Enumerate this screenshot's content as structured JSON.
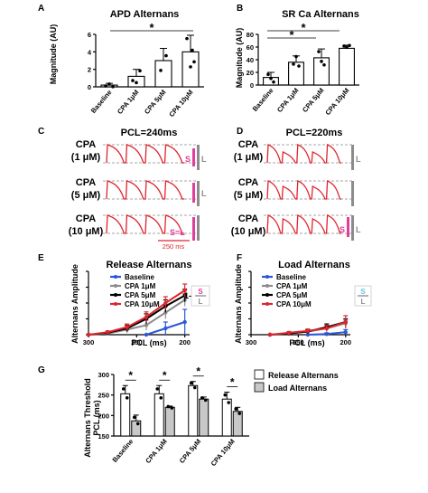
{
  "panels": {
    "A": {
      "letter": "A",
      "title": "APD Alternans",
      "ylabel": "Magnitude (AU)",
      "sig": "*"
    },
    "B": {
      "letter": "B",
      "title": "SR Ca Alternans",
      "ylabel": "Magnitude (AU)",
      "sig1": "*",
      "sig2": "*"
    },
    "C": {
      "letter": "C",
      "title": "PCL=240ms",
      "rows": [
        "CPA",
        "(1 μM)",
        "CPA",
        "(5 μM)",
        "CPA",
        "(10 μM)"
      ],
      "scale": "250 ms",
      "S": "S",
      "L": "L",
      "SL": "S=L"
    },
    "D": {
      "letter": "D",
      "title": "PCL=220ms",
      "rows": [
        "CPA",
        "(1 μM)",
        "CPA",
        "(5 μM)",
        "CPA",
        "(10 μM)"
      ],
      "S": "S",
      "L": "L"
    },
    "E": {
      "letter": "E",
      "title": "Release Alternans",
      "ylabel": "Alternans Amplitude",
      "xlabel": "PCL (ms)",
      "formula_prefix": "1-",
      "formula_num": "S",
      "formula_den": "L"
    },
    "F": {
      "letter": "F",
      "title": "Load Alternans",
      "ylabel": "Alternans Amplitude",
      "xlabel": "PCL (ms)",
      "formula_num": "S",
      "formula_den": "L"
    },
    "G": {
      "letter": "G",
      "ylabel1": "Alternans Threshold",
      "ylabel2": "PCL (ms)",
      "sig": "*"
    }
  },
  "legend_lines": [
    "Baseline",
    "CPA 1μM",
    "CPA 5μM",
    "CPA 10μM"
  ],
  "legend_G": [
    "Release Alternans",
    "Load Alternans"
  ],
  "colors": {
    "red": "#e0242c",
    "blue": "#2b58d6",
    "gray": "#8c8c8c",
    "black": "#000000",
    "pink": "#e23d9a",
    "cyan": "#5cc8e6",
    "bargray": "#c8c8c8"
  },
  "chart_data": [
    {
      "type": "bar",
      "panel": "A",
      "title": "APD Alternans",
      "ylabel": "Magnitude (AU)",
      "categories": [
        "Baseline",
        "CPA 1μM",
        "CPA 5μM",
        "CPA 10μM"
      ],
      "values": [
        0.2,
        1.2,
        3.0,
        4.0
      ],
      "errors": [
        0.2,
        0.8,
        1.4,
        1.9
      ],
      "ylim": [
        0,
        6
      ],
      "yticks": [
        0,
        2,
        4,
        6
      ]
    },
    {
      "type": "bar",
      "panel": "B",
      "title": "SR Ca Alternans",
      "ylabel": "Magnitude (AU)",
      "categories": [
        "Baseline",
        "CPA 1μM",
        "CPA 5μM",
        "CPA 10μM"
      ],
      "values": [
        12,
        36,
        43,
        58
      ],
      "errors": [
        8,
        10,
        14,
        5
      ],
      "ylim": [
        0,
        80
      ],
      "yticks": [
        0,
        20,
        40,
        60,
        80
      ]
    },
    {
      "type": "line",
      "panel": "E",
      "title": "Release Alternans",
      "xlabel": "PCL (ms)",
      "ylabel": "Alternans Amplitude",
      "x": [
        300,
        280,
        260,
        240,
        220,
        200
      ],
      "xlim": [
        300,
        195
      ],
      "xticks": [
        300,
        250,
        200
      ],
      "ylim": [
        0,
        1
      ],
      "series": [
        {
          "name": "Baseline",
          "x": [
            240,
            220,
            200
          ],
          "values": [
            0.0,
            0.1,
            0.2
          ],
          "errors": [
            0.0,
            0.1,
            0.2
          ]
        },
        {
          "name": "CPA 1μM",
          "x": [
            300,
            280,
            260,
            240,
            220,
            200
          ],
          "values": [
            0.0,
            0.02,
            0.08,
            0.15,
            0.35,
            0.55
          ],
          "errors": [
            0.0,
            0.02,
            0.05,
            0.08,
            0.1,
            0.1
          ]
        },
        {
          "name": "CPA 5μM",
          "x": [
            300,
            280,
            260,
            240,
            220,
            200
          ],
          "values": [
            0.0,
            0.03,
            0.1,
            0.25,
            0.45,
            0.62
          ],
          "errors": [
            0.0,
            0.02,
            0.05,
            0.08,
            0.1,
            0.1
          ]
        },
        {
          "name": "CPA 10μM",
          "x": [
            300,
            280,
            260,
            240,
            220,
            200
          ],
          "values": [
            0.0,
            0.04,
            0.12,
            0.28,
            0.5,
            0.7
          ],
          "errors": [
            0.0,
            0.02,
            0.05,
            0.08,
            0.1,
            0.1
          ]
        }
      ]
    },
    {
      "type": "line",
      "panel": "F",
      "title": "Load Alternans",
      "xlabel": "PCL (ms)",
      "ylabel": "Alternans Amplitude",
      "x": [
        280,
        260,
        240,
        220,
        200
      ],
      "xlim": [
        300,
        195
      ],
      "xticks": [
        300,
        250,
        200
      ],
      "ylim": [
        0,
        1
      ],
      "series": [
        {
          "name": "Baseline",
          "x": [
            240,
            220,
            200
          ],
          "values": [
            0.0,
            0.01,
            0.04
          ],
          "errors": [
            0.0,
            0.02,
            0.04
          ]
        },
        {
          "name": "CPA 1μM",
          "x": [
            280,
            260,
            240,
            220,
            200
          ],
          "values": [
            0.0,
            0.02,
            0.05,
            0.1,
            0.18
          ],
          "errors": [
            0.0,
            0.02,
            0.03,
            0.05,
            0.05
          ]
        },
        {
          "name": "CPA 5μM",
          "x": [
            280,
            260,
            240,
            220,
            200
          ],
          "values": [
            0.0,
            0.02,
            0.05,
            0.12,
            0.2
          ],
          "errors": [
            0.0,
            0.02,
            0.03,
            0.05,
            0.05
          ]
        },
        {
          "name": "CPA 10μM",
          "x": [
            280,
            260,
            240,
            220,
            200
          ],
          "values": [
            0.0,
            0.03,
            0.06,
            0.1,
            0.2
          ],
          "errors": [
            0.0,
            0.02,
            0.03,
            0.05,
            0.1
          ]
        }
      ]
    },
    {
      "type": "bar",
      "panel": "G",
      "ylabel": "Alternans Threshold PCL (ms)",
      "categories": [
        "Baseline",
        "CPA 1μM",
        "CPA 5μM",
        "CPA 10μM"
      ],
      "ylim": [
        150,
        300
      ],
      "yticks": [
        150,
        200,
        250,
        300
      ],
      "series": [
        {
          "name": "Release Alternans",
          "values": [
            253,
            253,
            273,
            240
          ],
          "errors": [
            20,
            20,
            10,
            17
          ]
        },
        {
          "name": "Load Alternans",
          "values": [
            187,
            220,
            240,
            210
          ],
          "errors": [
            14,
            3,
            5,
            10
          ]
        }
      ]
    }
  ]
}
